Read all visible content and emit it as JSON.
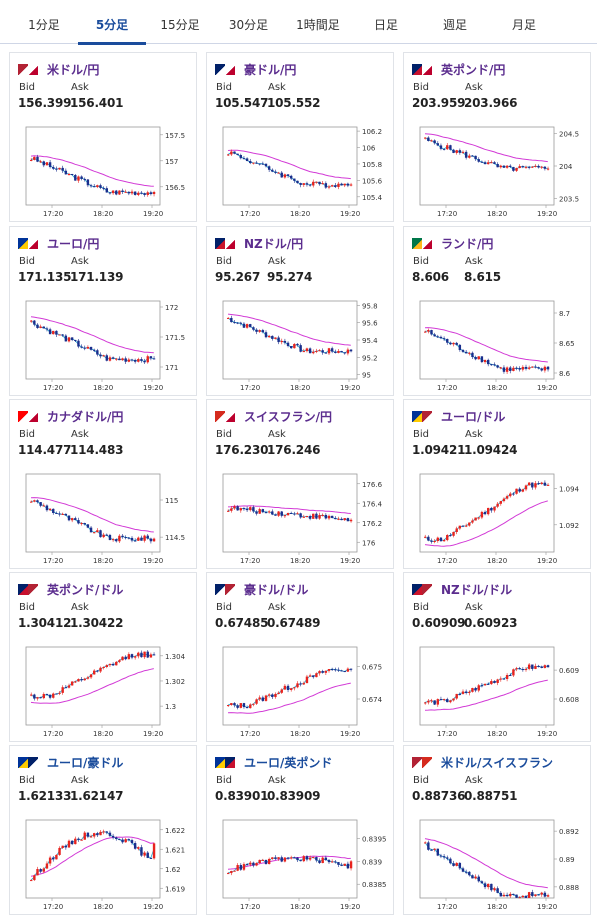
{
  "tabs": [
    "1分足",
    "5分足",
    "15分足",
    "30分足",
    "1時間足",
    "日足",
    "週足",
    "月足"
  ],
  "active_tab": 1,
  "labels": {
    "bid": "Bid",
    "ask": "Ask"
  },
  "x_ticks": [
    "17:20",
    "18:20",
    "19:20"
  ],
  "colors": {
    "accent": "#1a4c9c",
    "pair_jpy": "#5b2d8e",
    "pair_cross": "#1a4c9c",
    "up": "#e8231e",
    "down": "#1a2e8c",
    "ma": "#d23ad6",
    "ma2": "#1aa6d1"
  },
  "pairs": [
    {
      "name": "米ドル/円",
      "flag": "us-jp-flag-icon",
      "bid": "156.399",
      "ask": "156.401",
      "y_ticks": [
        "157.5",
        "157",
        "156.5"
      ],
      "ymin": 156.15,
      "ymax": 157.65,
      "trend": "down",
      "open": 157.05,
      "close": 156.4
    },
    {
      "name": "豪ドル/円",
      "flag": "au-jp-flag-icon",
      "bid": "105.547",
      "ask": "105.552",
      "y_ticks": [
        "106.2",
        "106",
        "105.8",
        "105.6",
        "105.4"
      ],
      "ymin": 105.3,
      "ymax": 106.25,
      "trend": "down",
      "open": 105.95,
      "close": 105.55
    },
    {
      "name": "英ポンド/円",
      "flag": "gb-jp-flag-icon",
      "bid": "203.959",
      "ask": "203.966",
      "y_ticks": [
        "204.5",
        "204",
        "203.5"
      ],
      "ymin": 203.4,
      "ymax": 204.6,
      "trend": "down",
      "open": 204.4,
      "close": 203.96
    },
    {
      "name": "ユーロ/円",
      "flag": "eu-jp-flag-icon",
      "bid": "171.135",
      "ask": "171.139",
      "y_ticks": [
        "172",
        "171.5",
        "171"
      ],
      "ymin": 170.8,
      "ymax": 172.1,
      "trend": "down",
      "open": 171.75,
      "close": 171.13
    },
    {
      "name": "NZドル/円",
      "flag": "nz-jp-flag-icon",
      "bid": "95.267",
      "ask": "95.274",
      "y_ticks": [
        "95.8",
        "95.6",
        "95.4",
        "95.2",
        "95"
      ],
      "ymin": 94.95,
      "ymax": 95.85,
      "trend": "down",
      "open": 95.65,
      "close": 95.27
    },
    {
      "name": "ランド/円",
      "flag": "za-jp-flag-icon",
      "bid": "8.606",
      "ask": "8.615",
      "y_ticks": [
        "8.7",
        "8.65",
        "8.6"
      ],
      "ymin": 8.59,
      "ymax": 8.72,
      "trend": "down",
      "open": 8.67,
      "close": 8.606
    },
    {
      "name": "カナダドル/円",
      "flag": "ca-jp-flag-icon",
      "bid": "114.477",
      "ask": "114.483",
      "y_ticks": [
        "115",
        "114.5"
      ],
      "ymin": 114.3,
      "ymax": 115.35,
      "trend": "down",
      "open": 115.0,
      "close": 114.48
    },
    {
      "name": "スイスフラン/円",
      "flag": "ch-jp-flag-icon",
      "bid": "176.230",
      "ask": "176.246",
      "y_ticks": [
        "176.6",
        "176.4",
        "176.2",
        "176"
      ],
      "ymin": 175.9,
      "ymax": 176.7,
      "trend": "flat",
      "open": 176.35,
      "close": 176.23
    },
    {
      "name": "ユーロ/ドル",
      "flag": "eu-us-flag-icon",
      "bid": "1.09421",
      "ask": "1.09424",
      "y_ticks": [
        "1.094",
        "1.092"
      ],
      "ymin": 1.0905,
      "ymax": 1.0948,
      "trend": "up",
      "open": 1.0912,
      "close": 1.0942
    },
    {
      "name": "英ポンド/ドル",
      "flag": "gb-us-flag-icon",
      "bid": "1.30412",
      "ask": "1.30422",
      "y_ticks": [
        "1.304",
        "1.302",
        "1.3"
      ],
      "ymin": 1.2985,
      "ymax": 1.3047,
      "trend": "up",
      "open": 1.3008,
      "close": 1.3041
    },
    {
      "name": "豪ドル/ドル",
      "flag": "au-us-flag-icon",
      "bid": "0.67485",
      "ask": "0.67489",
      "y_ticks": [
        "0.675",
        "0.674"
      ],
      "ymin": 0.6732,
      "ymax": 0.6756,
      "trend": "up",
      "open": 0.6738,
      "close": 0.6749
    },
    {
      "name": "NZドル/ドル",
      "flag": "nz-us-flag-icon",
      "bid": "0.60909",
      "ask": "0.60923",
      "y_ticks": [
        "0.609",
        "0.608"
      ],
      "ymin": 0.6071,
      "ymax": 0.6098,
      "trend": "up",
      "open": 0.6079,
      "close": 0.6091
    },
    {
      "name": "ユーロ/豪ドル",
      "flag": "eu-au-flag-icon",
      "bid": "1.62133",
      "ask": "1.62147",
      "y_ticks": [
        "1.622",
        "1.621",
        "1.62",
        "1.619"
      ],
      "ymin": 1.6185,
      "ymax": 1.6225,
      "trend": "updown",
      "open": 1.6195,
      "close": 1.6213
    },
    {
      "name": "ユーロ/英ポンド",
      "flag": "eu-gb-flag-icon",
      "bid": "0.83901",
      "ask": "0.83909",
      "y_ticks": [
        "0.8395",
        "0.839",
        "0.8385"
      ],
      "ymin": 0.8382,
      "ymax": 0.8399,
      "trend": "updown",
      "open": 0.8388,
      "close": 0.839
    },
    {
      "name": "米ドル/スイスフラン",
      "flag": "us-ch-flag-icon",
      "bid": "0.88736",
      "ask": "0.88751",
      "y_ticks": [
        "0.892",
        "0.89",
        "0.888"
      ],
      "ymin": 0.8872,
      "ymax": 0.8928,
      "trend": "down",
      "open": 0.891,
      "close": 0.8874
    }
  ]
}
